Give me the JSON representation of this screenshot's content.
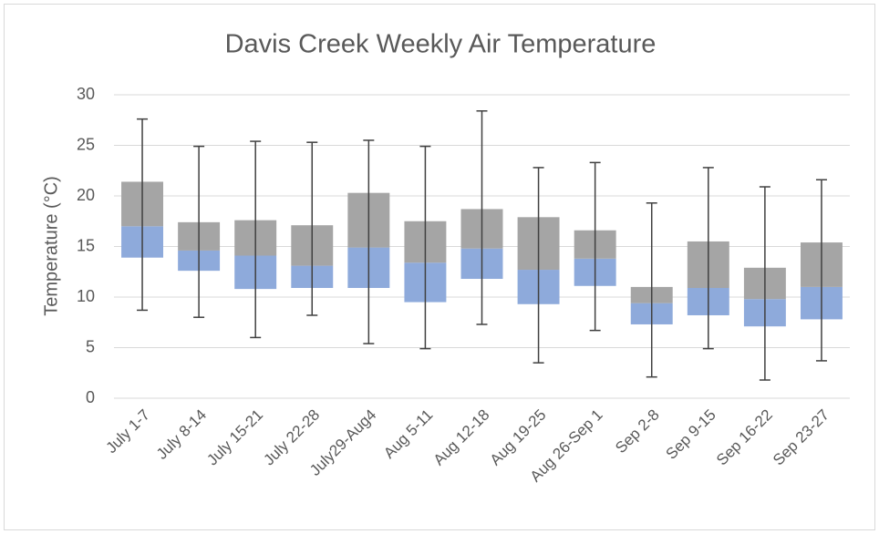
{
  "chart_data": {
    "type": "box",
    "title": "Davis Creek Weekly Air Temperature",
    "y_label": "Temperature (°C)",
    "categories": [
      "July 1-7",
      "July 8-14",
      "July 15-21",
      "July 22-28",
      "July29-Aug4",
      "Aug 5-11",
      "Aug 12-18",
      "Aug 19-25",
      "Aug 26-Sep 1",
      "Sep 2-8",
      "Sep 9-15",
      "Sep 16-22",
      "Sep 23-27"
    ],
    "min": [
      8.7,
      8.0,
      6.0,
      8.2,
      5.4,
      4.9,
      7.3,
      3.5,
      6.7,
      2.1,
      4.9,
      1.8,
      3.7
    ],
    "q1": [
      13.9,
      12.6,
      10.8,
      10.9,
      10.9,
      9.5,
      11.8,
      9.3,
      11.1,
      7.3,
      8.2,
      7.1,
      7.8
    ],
    "median": [
      17.0,
      14.6,
      14.1,
      13.1,
      14.9,
      13.4,
      14.8,
      12.7,
      13.8,
      9.4,
      10.9,
      9.8,
      11.0
    ],
    "q3": [
      21.4,
      17.4,
      17.6,
      17.1,
      20.3,
      17.5,
      18.7,
      17.9,
      16.6,
      11.0,
      15.5,
      12.9,
      15.4
    ],
    "max": [
      27.6,
      24.9,
      25.4,
      25.3,
      25.5,
      24.9,
      28.4,
      22.8,
      23.3,
      19.3,
      22.8,
      20.9,
      21.6
    ],
    "lower_color": "#8eaadb",
    "upper_color": "#a5a5a5",
    "whisker_color": "#404040",
    "ylim": [
      0,
      30
    ],
    "yticks": [
      0,
      5,
      10,
      15,
      20,
      25,
      30
    ],
    "grid": true
  }
}
